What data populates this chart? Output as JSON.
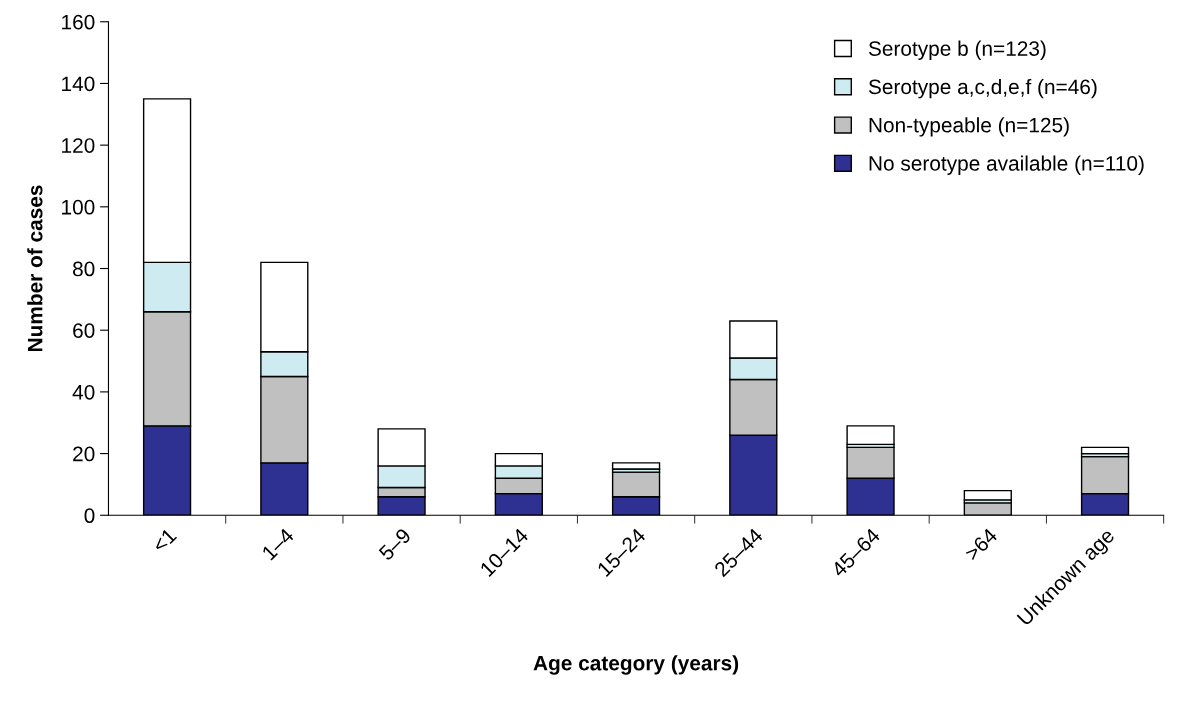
{
  "chart_data": {
    "type": "bar",
    "stacked": true,
    "xlabel": "Age category (years)",
    "ylabel": "Number of cases",
    "categories": [
      "<1",
      "1–4",
      "5–9",
      "10–14",
      "15–24",
      "25–44",
      "45–64",
      ">64",
      "Unknown age"
    ],
    "series": [
      {
        "name": "No serotype available (n=110)",
        "color": "#2e3192",
        "values": [
          29,
          17,
          6,
          7,
          6,
          26,
          12,
          0,
          7
        ]
      },
      {
        "name": "Non-typeable (n=125)",
        "color": "#c0c0c0",
        "values": [
          37,
          28,
          3,
          5,
          8,
          18,
          10,
          4,
          12
        ]
      },
      {
        "name": "Serotype a,c,d,e,f (n=46)",
        "color": "#cdebf0",
        "values": [
          16,
          8,
          7,
          4,
          1,
          7,
          1,
          1,
          1
        ]
      },
      {
        "name": "Serotype b (n=123)",
        "color": "#ffffff",
        "values": [
          53,
          29,
          12,
          4,
          2,
          12,
          6,
          3,
          2
        ]
      }
    ],
    "ylim": [
      0,
      160
    ],
    "yticks": [
      0,
      20,
      40,
      60,
      80,
      100,
      120,
      140,
      160
    ],
    "grid": false,
    "legend": "top right"
  }
}
